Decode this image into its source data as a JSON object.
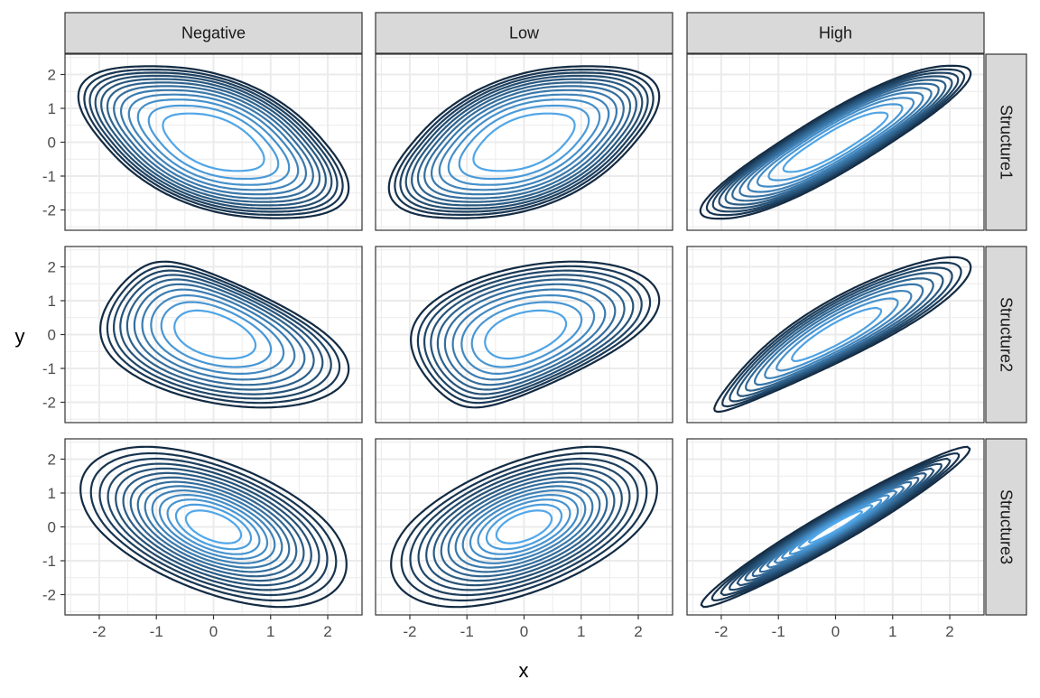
{
  "chart_data": {
    "type": "contour",
    "facet_columns": [
      "Negative",
      "Low",
      "High"
    ],
    "facet_rows": [
      "Structure1",
      "Structure2",
      "Structure3"
    ],
    "xlabel": "x",
    "ylabel": "y",
    "xlim": [
      -2.6,
      2.6
    ],
    "ylim": [
      -2.6,
      2.6
    ],
    "x_ticks": [
      -2,
      -1,
      0,
      1,
      2
    ],
    "y_ticks": [
      -2,
      -1,
      0,
      1,
      2
    ],
    "x_tick_labels": [
      "-2",
      "-1",
      "0",
      "1",
      "2"
    ],
    "y_tick_labels": [
      "-2",
      "-1",
      "0",
      "1",
      "2"
    ],
    "grid": true,
    "legend": "none",
    "panels": [
      {
        "row": "Structure1",
        "column": "Negative",
        "correlation": -0.5,
        "shape": "rounded",
        "levels": 12
      },
      {
        "row": "Structure1",
        "column": "Low",
        "correlation": 0.5,
        "shape": "rounded",
        "levels": 12
      },
      {
        "row": "Structure1",
        "column": "High",
        "correlation": 0.9,
        "shape": "rounded",
        "levels": 11
      },
      {
        "row": "Structure2",
        "column": "Negative",
        "correlation": -0.4,
        "shape": "skewed",
        "levels": 10
      },
      {
        "row": "Structure2",
        "column": "Low",
        "correlation": 0.4,
        "shape": "skewed",
        "levels": 10
      },
      {
        "row": "Structure2",
        "column": "High",
        "correlation": 0.9,
        "shape": "skewed",
        "levels": 9
      },
      {
        "row": "Structure3",
        "column": "Negative",
        "correlation": -0.5,
        "shape": "heavy-tailed",
        "levels": 14
      },
      {
        "row": "Structure3",
        "column": "Low",
        "correlation": 0.5,
        "shape": "heavy-tailed",
        "levels": 14
      },
      {
        "row": "Structure3",
        "column": "High",
        "correlation": 0.97,
        "shape": "heavy-tailed",
        "levels": 14
      }
    ],
    "colors": {
      "outer_contour": "#132b43",
      "inner_contour": "#56b1f7",
      "strip_fill": "#d9d9d9",
      "grid": "#ebebeb",
      "panel_border": "#333333"
    }
  }
}
